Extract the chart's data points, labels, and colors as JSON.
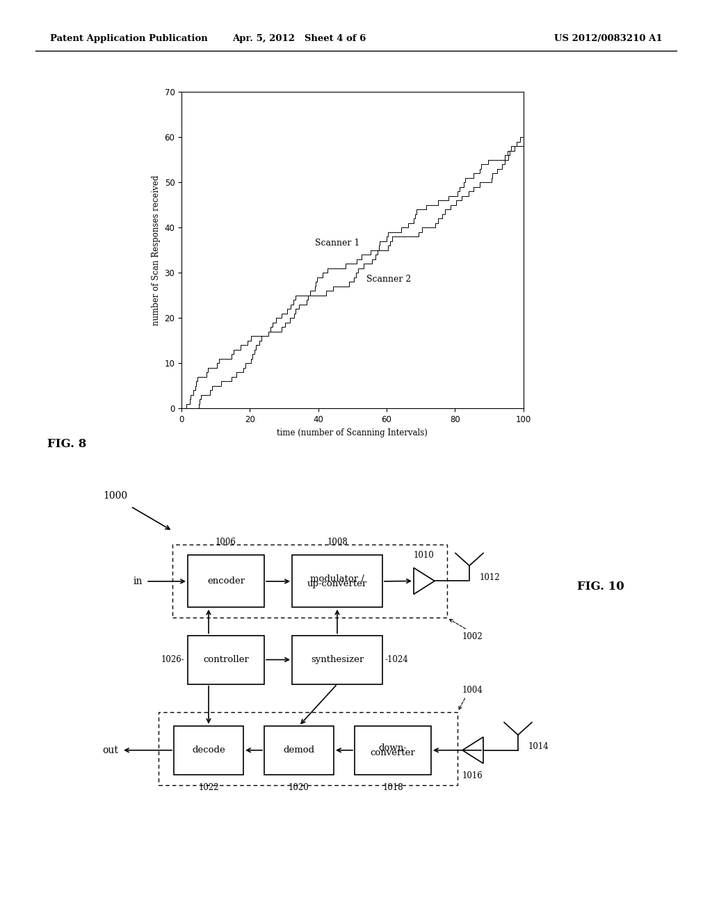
{
  "page_bg": "#ffffff",
  "header_left": "Patent Application Publication",
  "header_mid": "Apr. 5, 2012   Sheet 4 of 6",
  "header_right": "US 2012/0083210 A1",
  "fig8_label": "FIG. 8",
  "fig10_label": "FIG. 10",
  "plot_xlim": [
    0,
    100
  ],
  "plot_ylim": [
    0,
    70
  ],
  "plot_xticks": [
    0,
    20,
    40,
    60,
    80,
    100
  ],
  "plot_yticks": [
    0,
    10,
    20,
    30,
    40,
    50,
    60,
    70
  ],
  "plot_xlabel": "time (number of Scanning Intervals)",
  "plot_ylabel": "number of Scan Responses received",
  "scanner1_label": "Scanner 1",
  "scanner2_label": "Scanner 2",
  "line_color": "#000000",
  "background_color": "#ffffff"
}
